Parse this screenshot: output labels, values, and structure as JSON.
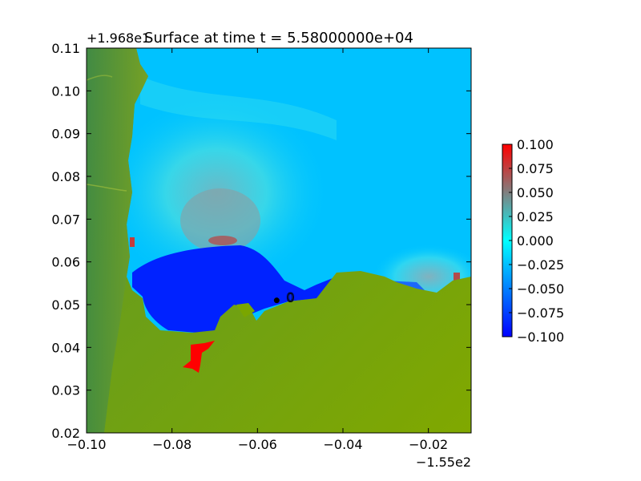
{
  "chart_data": {
    "type": "heatmap",
    "title": "Surface at time t = 5.58000000e+04",
    "x_offset_label": "−1.55e2",
    "y_offset_label": "+1.968e1",
    "xlim": [
      -0.1,
      -0.01
    ],
    "ylim": [
      0.02,
      0.11
    ],
    "x_ticks": [
      -0.1,
      -0.08,
      -0.06,
      -0.04,
      -0.02
    ],
    "x_tick_labels": [
      "−0.10",
      "−0.08",
      "−0.06",
      "−0.04",
      "−0.02"
    ],
    "y_ticks": [
      0.02,
      0.03,
      0.04,
      0.05,
      0.06,
      0.07,
      0.08,
      0.09,
      0.1,
      0.11
    ],
    "y_tick_labels": [
      "0.02",
      "0.03",
      "0.04",
      "0.05",
      "0.06",
      "0.07",
      "0.08",
      "0.09",
      "0.10",
      "0.11"
    ],
    "colorbar": {
      "vmin": -0.1,
      "vmax": 0.1,
      "ticks": [
        -0.1,
        -0.075,
        -0.05,
        -0.025,
        0.0,
        0.025,
        0.05,
        0.075,
        0.1
      ],
      "tick_labels": [
        "−0.100",
        "−0.075",
        "−0.050",
        "−0.025",
        "0.000",
        "0.025",
        "0.050",
        "0.075",
        "0.100"
      ],
      "colors": [
        "#0000ff",
        "#00ffff",
        "#808080",
        "#ff0000"
      ]
    },
    "land_color": "#7ea600",
    "land_dark_color": "#4a8a3a",
    "gauge_marker": {
      "x": -0.0555,
      "y": 0.051,
      "label": "0"
    },
    "grid": false
  }
}
